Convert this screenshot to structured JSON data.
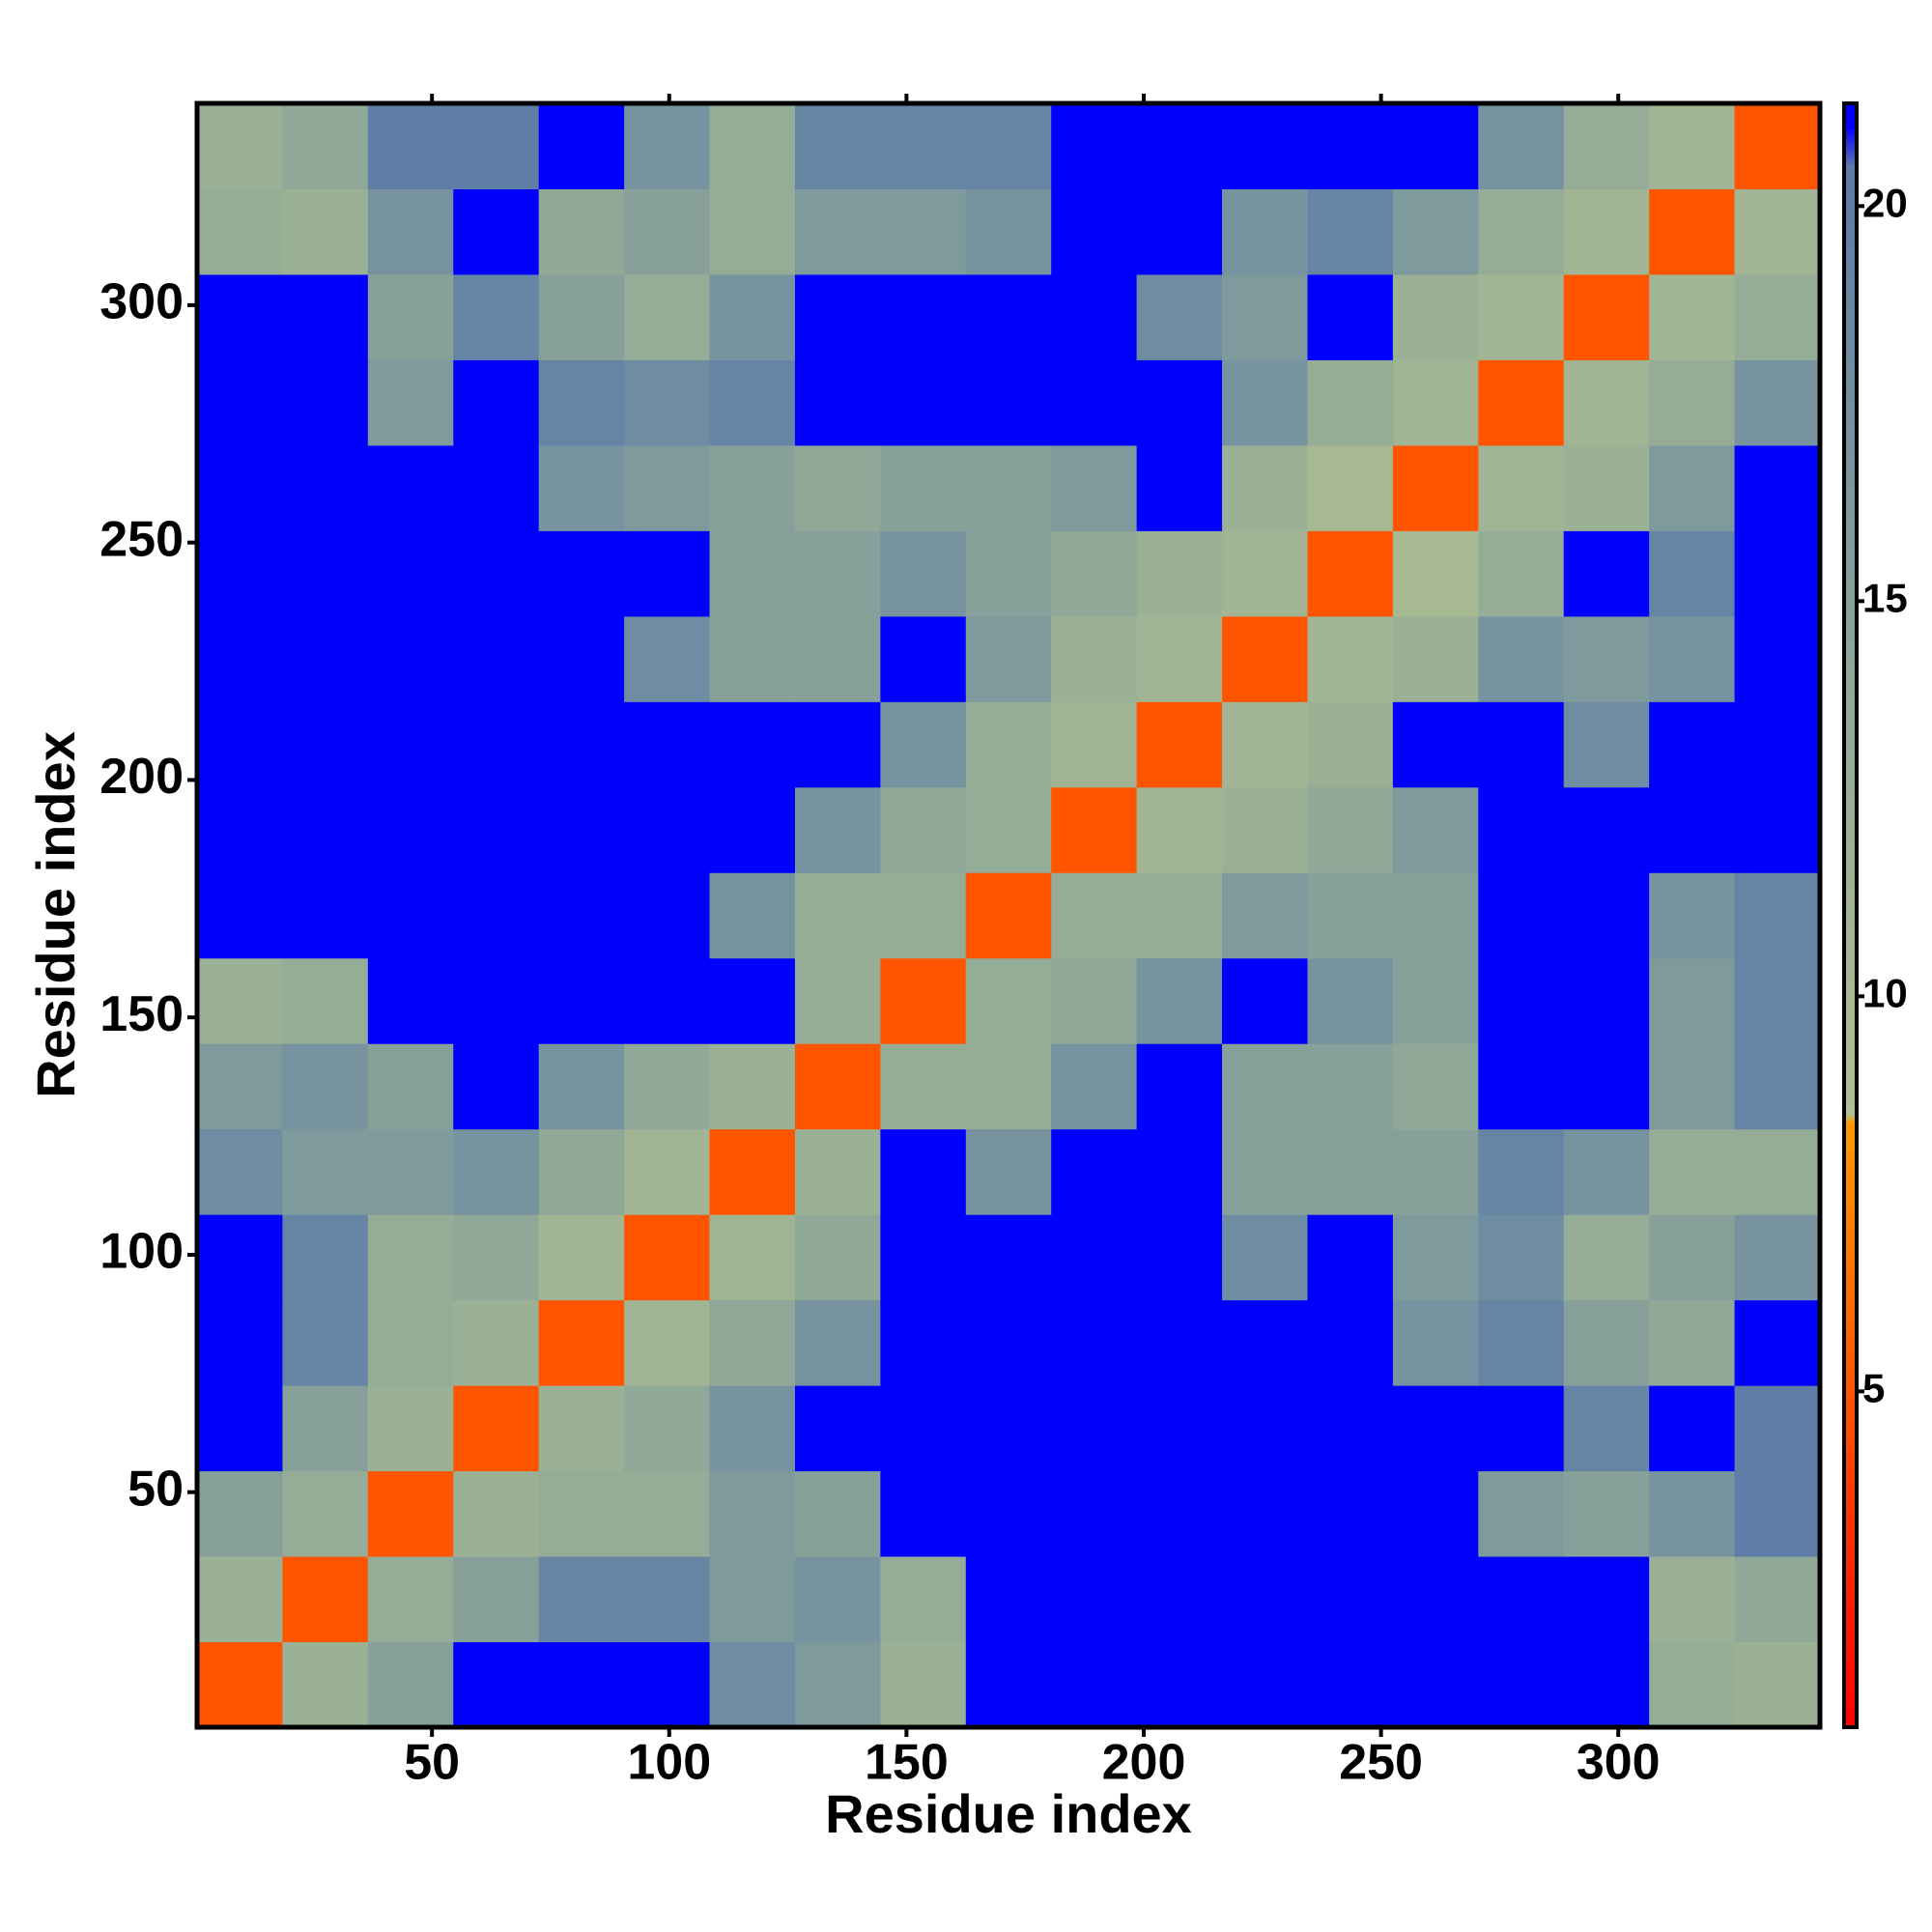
{
  "chart_data": {
    "type": "heatmap",
    "xlabel": "Residue index",
    "ylabel": "Residue index",
    "xbins": [
      0.5,
      18.5,
      36.5,
      54.5,
      72.5,
      90.5,
      108.5,
      126.5,
      144.5,
      162.5,
      180.5,
      198.5,
      216.5,
      234.5,
      252.5,
      270.5,
      288.5,
      306.5,
      324.5,
      342.5
    ],
    "ybins": [
      0.5,
      18.5,
      36.5,
      54.5,
      72.5,
      90.5,
      108.5,
      126.5,
      144.5,
      162.5,
      180.5,
      198.5,
      216.5,
      234.5,
      252.5,
      270.5,
      288.5,
      306.5,
      324.5,
      342.5
    ],
    "z": [
      [
        5,
        12,
        15,
        21,
        21,
        21,
        18,
        16,
        12,
        21,
        21,
        21,
        21,
        21,
        21,
        21,
        21,
        13,
        12
      ],
      [
        12,
        5,
        13,
        15,
        19,
        19,
        16,
        17,
        13,
        21,
        21,
        21,
        21,
        21,
        21,
        21,
        21,
        12,
        14
      ],
      [
        15,
        13,
        5,
        12,
        13,
        13,
        16,
        15,
        21,
        21,
        21,
        21,
        21,
        21,
        21,
        16,
        15,
        17,
        20
      ],
      [
        21,
        15,
        12,
        5,
        12,
        14,
        17,
        21,
        21,
        21,
        21,
        21,
        21,
        21,
        21,
        21,
        19,
        21,
        20
      ],
      [
        21,
        19,
        13,
        12,
        5,
        11,
        14,
        17,
        21,
        21,
        21,
        21,
        21,
        21,
        17,
        19,
        15,
        14,
        21
      ],
      [
        21,
        19,
        13,
        14,
        11,
        5,
        11,
        14,
        21,
        21,
        21,
        21,
        18,
        21,
        16,
        18,
        13,
        15,
        17
      ],
      [
        18,
        16,
        16,
        17,
        14,
        11,
        5,
        12,
        21,
        17,
        21,
        21,
        15,
        15,
        15,
        19,
        17,
        13,
        13
      ],
      [
        16,
        17,
        15,
        21,
        17,
        14,
        12,
        5,
        13,
        13,
        17,
        21,
        15,
        15,
        14,
        21,
        21,
        16,
        19
      ],
      [
        12,
        13,
        21,
        21,
        21,
        21,
        21,
        13,
        5,
        13,
        14,
        17,
        21,
        17,
        15,
        21,
        21,
        16,
        19
      ],
      [
        21,
        21,
        21,
        21,
        21,
        21,
        17,
        13,
        13,
        5,
        13,
        13,
        16,
        15,
        15,
        21,
        21,
        17,
        19
      ],
      [
        21,
        21,
        21,
        21,
        21,
        21,
        21,
        17,
        14,
        13,
        5,
        11,
        12,
        14,
        16,
        21,
        21,
        21,
        21
      ],
      [
        21,
        21,
        21,
        21,
        21,
        21,
        21,
        21,
        17,
        13,
        11,
        5,
        11,
        12,
        21,
        21,
        18,
        21,
        21
      ],
      [
        21,
        21,
        21,
        21,
        21,
        18,
        15,
        15,
        21,
        16,
        12,
        11,
        5,
        11,
        12,
        17,
        16,
        17,
        21
      ],
      [
        21,
        21,
        21,
        21,
        21,
        21,
        15,
        15,
        17,
        15,
        14,
        12,
        11,
        5,
        10,
        13,
        21,
        19,
        21
      ],
      [
        21,
        21,
        21,
        21,
        17,
        16,
        15,
        14,
        15,
        15,
        16,
        21,
        12,
        10,
        5,
        11,
        12,
        16,
        21
      ],
      [
        21,
        21,
        16,
        21,
        19,
        18,
        19,
        21,
        21,
        21,
        21,
        21,
        17,
        13,
        11,
        5,
        11,
        13,
        17
      ],
      [
        21,
        21,
        15,
        19,
        15,
        13,
        17,
        21,
        21,
        21,
        21,
        18,
        16,
        21,
        12,
        11,
        5,
        11,
        13
      ],
      [
        13,
        12,
        17,
        21,
        14,
        15,
        13,
        16,
        16,
        17,
        21,
        21,
        17,
        19,
        16,
        13,
        11,
        5,
        11
      ],
      [
        12,
        14,
        20,
        20,
        21,
        17,
        13,
        19,
        19,
        19,
        21,
        21,
        21,
        21,
        21,
        17,
        13,
        11,
        5
      ]
    ],
    "xlim": [
      0.5,
      342.5
    ],
    "ylim": [
      0.5,
      342.5
    ],
    "xticks": [
      50,
      100,
      150,
      200,
      250,
      300
    ],
    "yticks": [
      50,
      100,
      150,
      200,
      250,
      300
    ],
    "clim": [
      0.75,
      21.3
    ],
    "cticks": [
      5,
      10,
      15,
      20
    ],
    "colorscale": [
      [
        0.75,
        "#ff0000"
      ],
      [
        8.4,
        "#ff9900"
      ],
      [
        8.5,
        "#b0c090"
      ],
      [
        14,
        "#8fa898"
      ],
      [
        20.5,
        "#5a7aa8"
      ],
      [
        21,
        "#0000ff"
      ],
      [
        21.3,
        "#0000ff"
      ]
    ]
  }
}
